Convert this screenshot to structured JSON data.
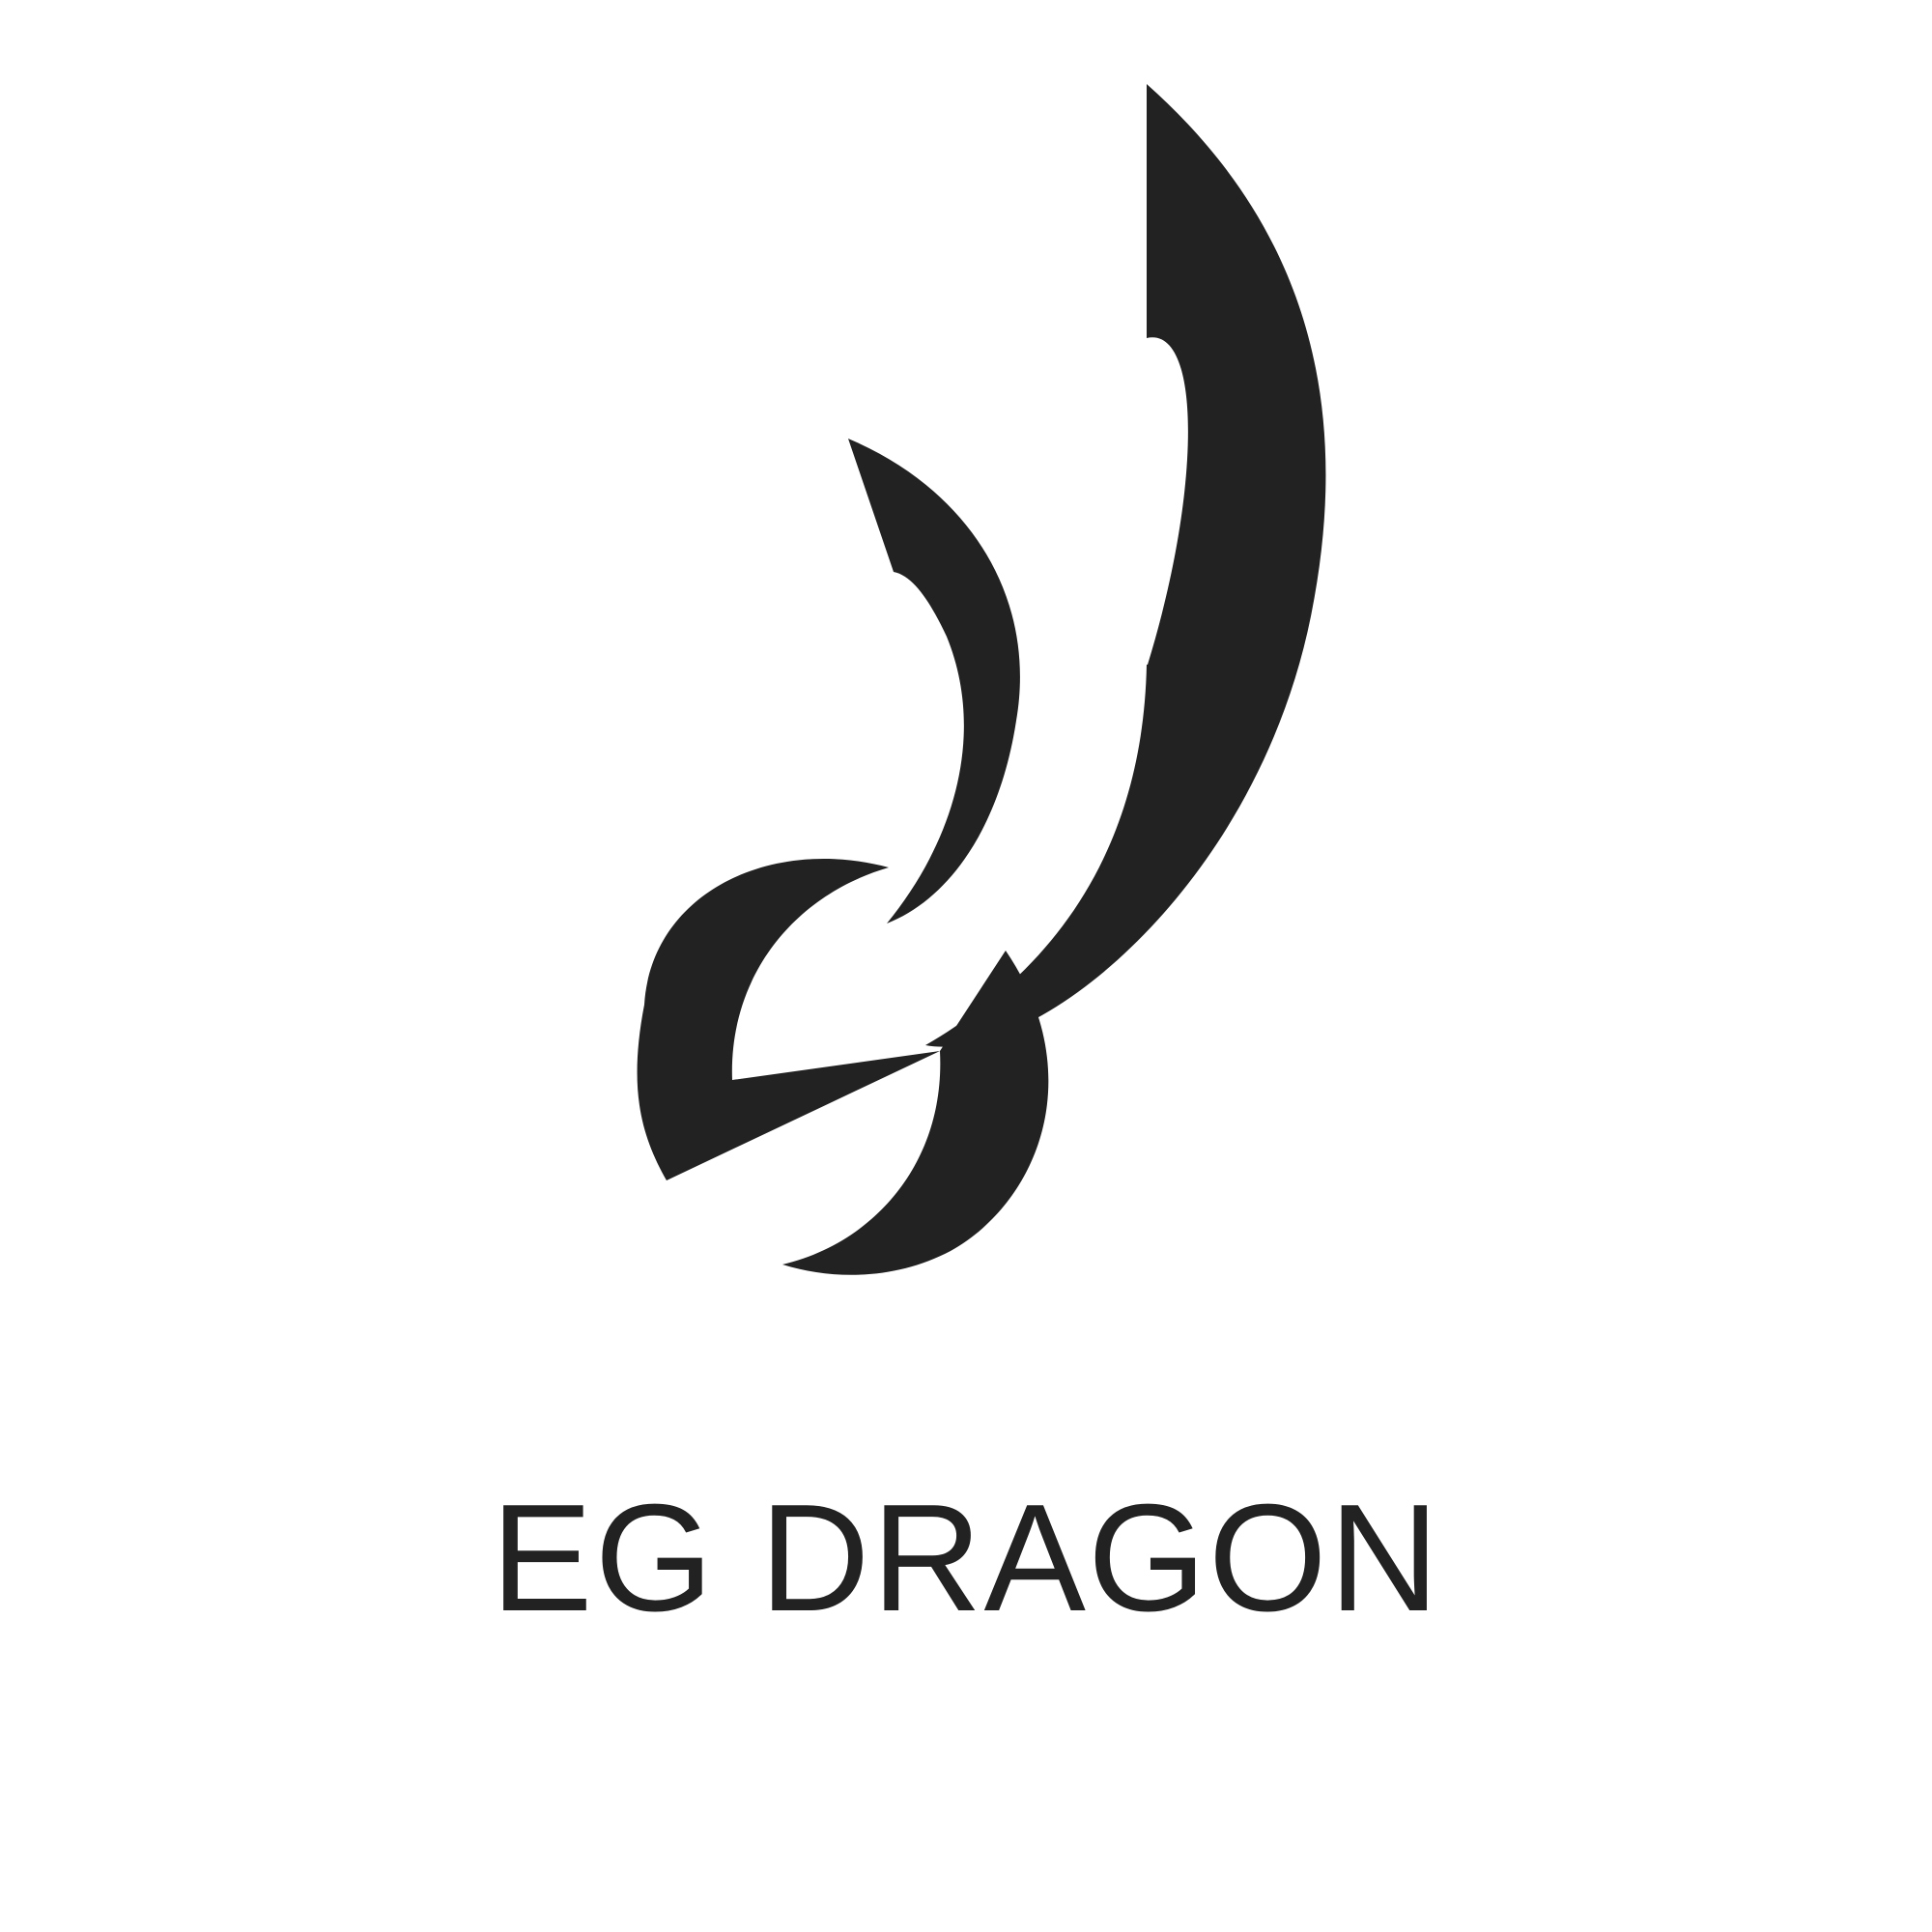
{
  "brand": {
    "name": "EG DRAGON",
    "ink_color": "#222222",
    "background_color": "#ffffff"
  },
  "logo": {
    "icon": "dragon-emblem-icon"
  }
}
